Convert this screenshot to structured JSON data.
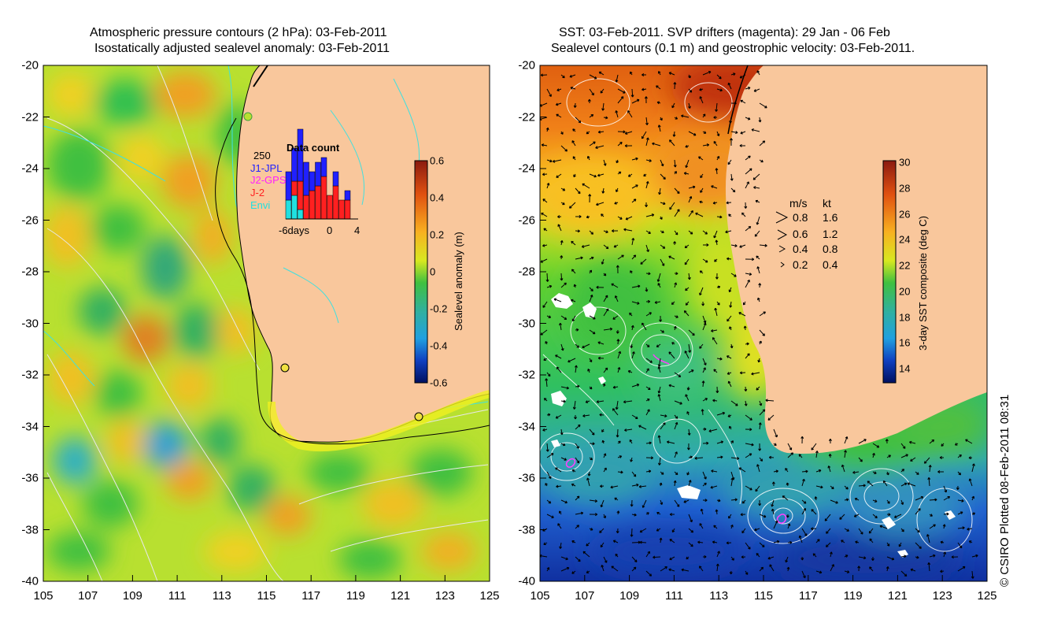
{
  "left": {
    "title_line1": "Atmospheric pressure contours (2 hPa): 03-Feb-2011",
    "title_line2": "Isostatically adjusted sealevel anomaly: 03-Feb-2011",
    "x_ticks": [
      "105",
      "107",
      "109",
      "111",
      "113",
      "115",
      "117",
      "119",
      "121",
      "123",
      "125"
    ],
    "y_ticks": [
      "-20",
      "-22",
      "-24",
      "-26",
      "-28",
      "-30",
      "-32",
      "-34",
      "-36",
      "-38",
      "-40"
    ],
    "colorbar": {
      "label": "Sealevel anomaly (m)",
      "ticks": [
        "0.6",
        "0.4",
        "0.2",
        "0",
        "-0.2",
        "-0.4",
        "-0.6"
      ]
    },
    "inset": {
      "title": "Data count",
      "ymax_label": "250",
      "missions": [
        {
          "name": "J1-JPL",
          "color": "#2020ff"
        },
        {
          "name": "J2-GPS",
          "color": "#ff20ff"
        },
        {
          "name": "J-2",
          "color": "#ff2020"
        },
        {
          "name": "Envi",
          "color": "#20e0e0"
        }
      ],
      "x_labels": [
        "-6days",
        "0",
        "4"
      ],
      "bars": [
        {
          "day": -6,
          "envi": 40,
          "j2": 0,
          "jpl": 60
        },
        {
          "day": -5,
          "envi": 50,
          "j2": 30,
          "jpl": 70
        },
        {
          "day": -4,
          "envi": 20,
          "j2": 60,
          "jpl": 110
        },
        {
          "day": -3,
          "envi": 0,
          "j2": 50,
          "jpl": 70
        },
        {
          "day": -2,
          "envi": 0,
          "j2": 60,
          "jpl": 40
        },
        {
          "day": -1,
          "envi": 0,
          "j2": 70,
          "jpl": 50
        },
        {
          "day": 0,
          "envi": 0,
          "j2": 90,
          "jpl": 40
        },
        {
          "day": 1,
          "envi": 0,
          "j2": 50,
          "jpl": 0
        },
        {
          "day": 2,
          "envi": 0,
          "j2": 70,
          "jpl": 30
        },
        {
          "day": 3,
          "envi": 0,
          "j2": 40,
          "jpl": 0
        },
        {
          "day": 4,
          "envi": 0,
          "j2": 40,
          "jpl": 20
        }
      ]
    }
  },
  "right": {
    "title_line1": "SST: 03-Feb-2011. SVP drifters (magenta): 29 Jan - 06 Feb",
    "title_line2": "Sealevel contours (0.1 m) and geostrophic velocity: 03-Feb-2011.",
    "x_ticks": [
      "105",
      "107",
      "109",
      "111",
      "113",
      "115",
      "117",
      "119",
      "121",
      "123",
      "125"
    ],
    "y_ticks": [
      "-20",
      "-22",
      "-24",
      "-26",
      "-28",
      "-30",
      "-32",
      "-34",
      "-36",
      "-38",
      "-40"
    ],
    "colorbar": {
      "label": "3-day SST composite (deg C)",
      "ticks": [
        "30",
        "28",
        "26",
        "24",
        "22",
        "20",
        "18",
        "16",
        "14"
      ]
    },
    "velocity_legend": {
      "header_ms": "m/s",
      "header_kt": "kt",
      "rows": [
        {
          "ms": "0.8",
          "kt": "1.6"
        },
        {
          "ms": "0.6",
          "kt": "1.2"
        },
        {
          "ms": "0.4",
          "kt": "0.8"
        },
        {
          "ms": "0.2",
          "kt": "0.4"
        }
      ]
    }
  },
  "copyright": "© CSIRO Plotted 08-Feb-2011 08:31",
  "colors": {
    "land": "#f9c79c",
    "coast": "#000000",
    "isobath": "#40e0e0",
    "pressure": "#e8e8e8"
  }
}
